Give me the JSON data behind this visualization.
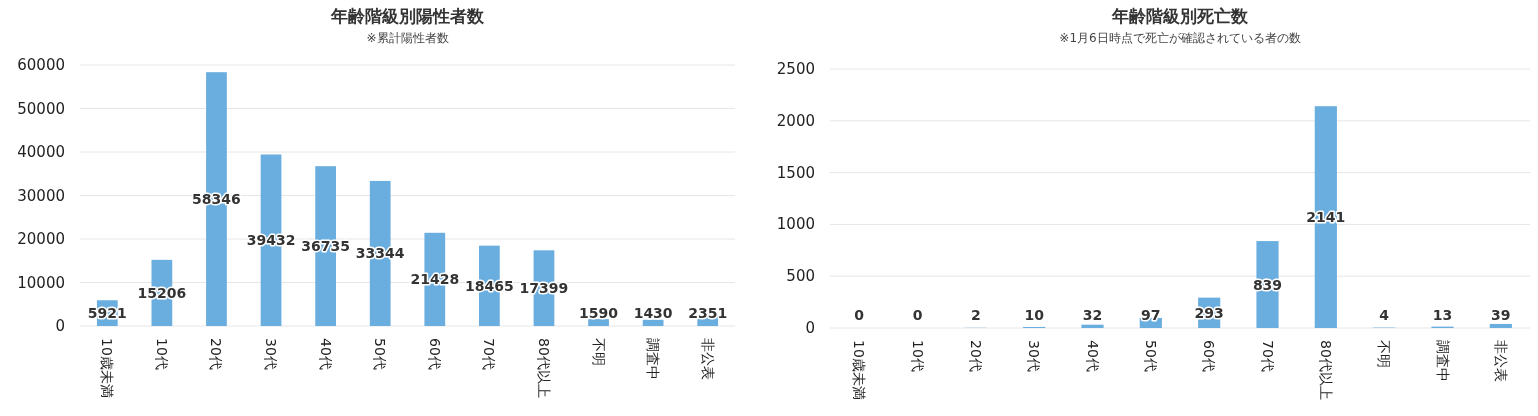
{
  "chart_data": [
    {
      "type": "bar",
      "title": "年齢階級別陽性者数",
      "subtitle": "※累計陽性者数",
      "categories": [
        "10歳未満",
        "10代",
        "20代",
        "30代",
        "40代",
        "50代",
        "60代",
        "70代",
        "80代以上",
        "不明",
        "調査中",
        "非公表"
      ],
      "values": [
        5921,
        15206,
        58346,
        39432,
        36735,
        33344,
        21428,
        18465,
        17399,
        1590,
        1430,
        2351
      ],
      "color": "#6aaddf",
      "ylim": [
        0,
        60000
      ],
      "yticks": [
        0,
        10000,
        20000,
        30000,
        40000,
        50000,
        60000
      ],
      "grid": "y",
      "data_labels": true
    },
    {
      "type": "bar",
      "title": "年齢階級別死亡数",
      "subtitle": "※1月6日時点で死亡が確認されている者の数",
      "categories": [
        "10歳未満",
        "10代",
        "20代",
        "30代",
        "40代",
        "50代",
        "60代",
        "70代",
        "80代以上",
        "不明",
        "調査中",
        "非公表"
      ],
      "values": [
        0,
        0,
        2,
        10,
        32,
        97,
        293,
        839,
        2141,
        4,
        13,
        39
      ],
      "color": "#6aaddf",
      "ylim": [
        0,
        2500
      ],
      "yticks": [
        0,
        500,
        1000,
        1500,
        2000,
        2500
      ],
      "grid": "y",
      "data_labels": true
    }
  ]
}
